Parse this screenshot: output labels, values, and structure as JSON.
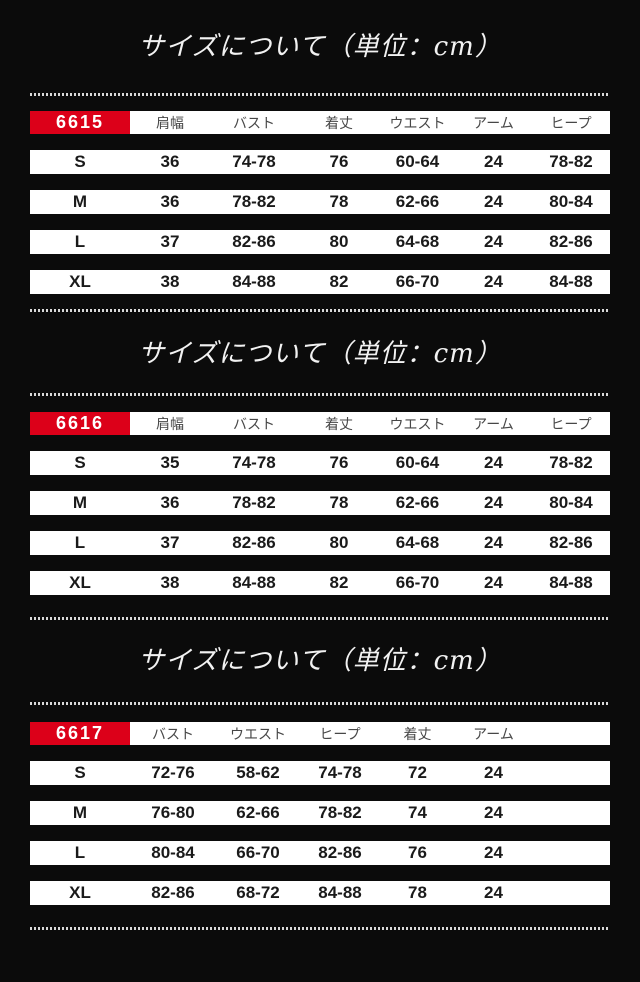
{
  "colors": {
    "accent_red": "#dc0019",
    "background": "#0b0b0b",
    "dot_gray": "#d9d9d9"
  },
  "sections": [
    {
      "title": "サイズについて（単位：cm）",
      "product_code": "6615",
      "columns": [
        "肩幅",
        "バスト",
        "着丈",
        "ウエスト",
        "アーム",
        "ヒープ"
      ],
      "rows": [
        {
          "size": "S",
          "values": [
            "36",
            "74-78",
            "76",
            "60-64",
            "24",
            "78-82"
          ]
        },
        {
          "size": "M",
          "values": [
            "36",
            "78-82",
            "78",
            "62-66",
            "24",
            "80-84"
          ]
        },
        {
          "size": "L",
          "values": [
            "37",
            "82-86",
            "80",
            "64-68",
            "24",
            "82-86"
          ]
        },
        {
          "size": "XL",
          "values": [
            "38",
            "84-88",
            "82",
            "66-70",
            "24",
            "84-88"
          ]
        }
      ]
    },
    {
      "title": "サイズについて（単位：cm）",
      "product_code": "6616",
      "columns": [
        "肩幅",
        "バスト",
        "着丈",
        "ウエスト",
        "アーム",
        "ヒープ"
      ],
      "rows": [
        {
          "size": "S",
          "values": [
            "35",
            "74-78",
            "76",
            "60-64",
            "24",
            "78-82"
          ]
        },
        {
          "size": "M",
          "values": [
            "36",
            "78-82",
            "78",
            "62-66",
            "24",
            "80-84"
          ]
        },
        {
          "size": "L",
          "values": [
            "37",
            "82-86",
            "80",
            "64-68",
            "24",
            "82-86"
          ]
        },
        {
          "size": "XL",
          "values": [
            "38",
            "84-88",
            "82",
            "66-70",
            "24",
            "84-88"
          ]
        }
      ]
    },
    {
      "title": "サイズについて（単位：cm）",
      "product_code": "6617",
      "columns": [
        "バスト",
        "ウエスト",
        "ヒープ",
        "着丈",
        "アーム"
      ],
      "rows": [
        {
          "size": "S",
          "values": [
            "72-76",
            "58-62",
            "74-78",
            "72",
            "24"
          ]
        },
        {
          "size": "M",
          "values": [
            "76-80",
            "62-66",
            "78-82",
            "74",
            "24"
          ]
        },
        {
          "size": "L",
          "values": [
            "80-84",
            "66-70",
            "82-86",
            "76",
            "24"
          ]
        },
        {
          "size": "XL",
          "values": [
            "82-86",
            "68-72",
            "84-88",
            "78",
            "24"
          ]
        }
      ]
    }
  ]
}
